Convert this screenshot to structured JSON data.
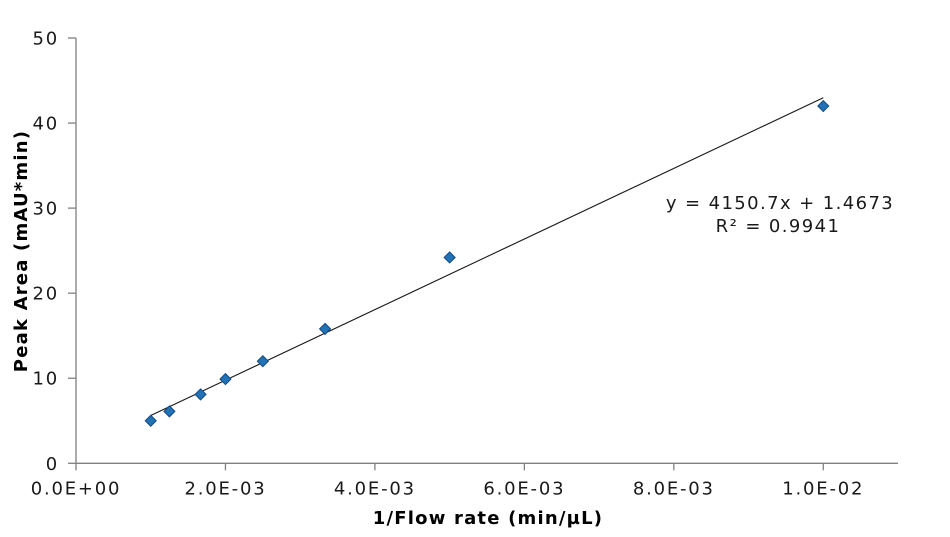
{
  "chart_data": {
    "type": "scatter",
    "title": "",
    "xlabel": "1/Flow rate (min/µL)",
    "ylabel": "Peak Area (mAU*min)",
    "x": [
      0.001,
      0.00125,
      0.001667,
      0.002,
      0.0025,
      0.003333,
      0.005,
      0.01
    ],
    "y": [
      5.0,
      6.1,
      8.1,
      9.9,
      12.0,
      15.8,
      24.2,
      42.0
    ],
    "xlim": [
      0,
      0.011
    ],
    "ylim": [
      0,
      50
    ],
    "x_ticks": [
      0,
      0.002,
      0.004,
      0.006,
      0.008,
      0.01
    ],
    "x_tick_labels": [
      "0.0E+00",
      "2.0E-03",
      "4.0E-03",
      "6.0E-03",
      "8.0E-03",
      "1.0E-02"
    ],
    "y_ticks": [
      0,
      10,
      20,
      30,
      40,
      50
    ],
    "y_tick_labels": [
      "0",
      "10",
      "20",
      "30",
      "40",
      "50"
    ],
    "grid": false,
    "legend": false,
    "trendline": {
      "slope": 4150.7,
      "intercept": 1.4673,
      "x_start": 0.001,
      "x_end": 0.01,
      "equation_label": "y = 4150.7x + 1.4673",
      "r2_label": "R² = 0.9941"
    },
    "marker": {
      "shape": "diamond",
      "size": 11,
      "fill": "#2173B6",
      "border": "#15497F"
    },
    "colors": {
      "axis": "#808080",
      "text": "#1A1A1A",
      "trendline": "#1A1A1A",
      "background": "#FFFFFF"
    }
  }
}
